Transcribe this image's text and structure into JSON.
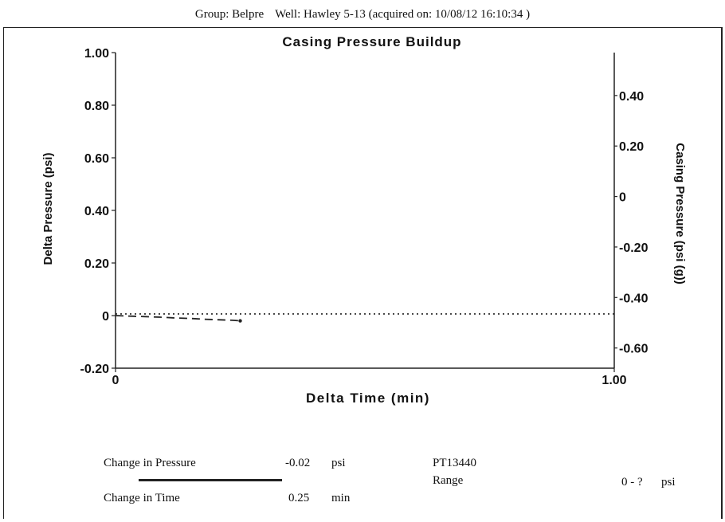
{
  "header": {
    "group": "Group: Belpre",
    "well": "Well: Hawley 5-13 (acquired on: 10/08/12 16:10:34 )"
  },
  "chart_data": {
    "type": "line",
    "title": "Casing Pressure Buildup",
    "xlabel": "Delta Time (min)",
    "ylabel": "Delta Pressure (psi)",
    "y2label": "Casing Pressure (psi (g))",
    "xlim": [
      0,
      1.0
    ],
    "ylim": [
      -0.2,
      1.0
    ],
    "y2lim": [
      -0.68,
      0.57
    ],
    "x_ticks": [
      "0",
      "1.00"
    ],
    "y_ticks": [
      "-0.20",
      "0",
      "0.20",
      "0.40",
      "0.60",
      "0.80",
      "1.00"
    ],
    "y2_ticks": [
      "-0.60",
      "-0.40",
      "-0.20",
      "0",
      "0.20",
      "0.40"
    ],
    "grid": false,
    "series": [
      {
        "axis": "left",
        "style": "dashed",
        "x": [
          0,
          0.03,
          0.06,
          0.09,
          0.12,
          0.15,
          0.18,
          0.21,
          0.235,
          0.25
        ],
        "y": [
          0,
          -0.002,
          -0.004,
          -0.006,
          -0.009,
          -0.011,
          -0.014,
          -0.016,
          -0.018,
          -0.02
        ]
      },
      {
        "axis": "right",
        "style": "dotted",
        "x": [
          0,
          1.0
        ],
        "y": [
          -0.465,
          -0.465
        ]
      }
    ]
  },
  "footer": {
    "pressure_label": "Change in Pressure",
    "pressure_value": "-0.02",
    "pressure_unit": "psi",
    "time_label": "Change in Time",
    "time_value": "0.25",
    "time_unit": "min",
    "sensor": "PT13440",
    "range_label": "Range",
    "range_value": "0 - ?",
    "range_unit": "psi"
  }
}
